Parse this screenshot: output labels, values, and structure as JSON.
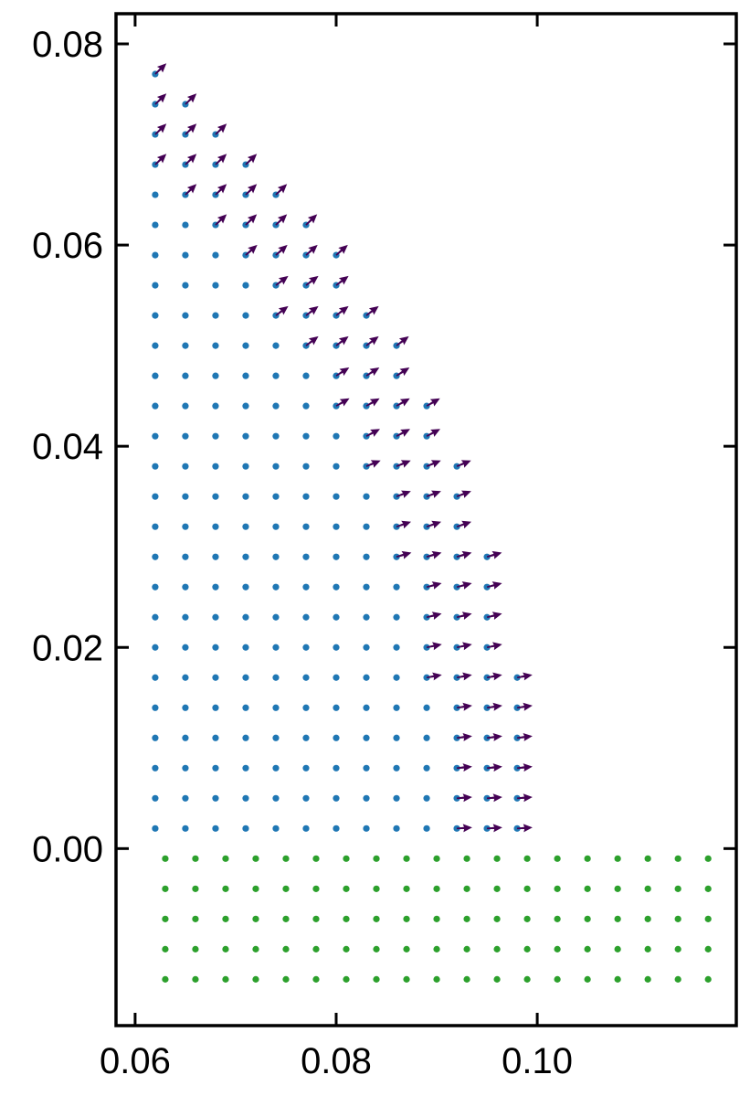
{
  "chart_data": {
    "type": "scatter",
    "xlim": [
      0.0581,
      0.1198
    ],
    "ylim": [
      -0.0176,
      0.083
    ],
    "xticks": [
      0.06,
      0.08,
      {
        "value": 0.1,
        "label": "0.10"
      }
    ],
    "yticks": [
      {
        "value": 0,
        "label": "0.00"
      },
      0.02,
      0.04,
      0.06,
      0.08
    ],
    "series": [
      {
        "color": "#1f77b4",
        "columns": [
          {
            "x": 0.062,
            "y": [
              0.002,
              0.005,
              0.008,
              0.011,
              0.014,
              0.017,
              0.02,
              0.023,
              0.026,
              0.029,
              0.032,
              0.035,
              0.038,
              0.041,
              0.044,
              0.047,
              0.05,
              0.053,
              0.056,
              0.059,
              0.062,
              0.065,
              0.068,
              0.071,
              0.074,
              0.077
            ]
          },
          {
            "x": 0.065,
            "y": [
              0.002,
              0.005,
              0.008,
              0.011,
              0.014,
              0.017,
              0.02,
              0.023,
              0.026,
              0.029,
              0.032,
              0.035,
              0.038,
              0.041,
              0.044,
              0.047,
              0.05,
              0.053,
              0.056,
              0.059,
              0.062,
              0.065,
              0.068,
              0.071,
              0.074
            ]
          },
          {
            "x": 0.068,
            "y": [
              0.002,
              0.005,
              0.008,
              0.011,
              0.014,
              0.017,
              0.02,
              0.023,
              0.026,
              0.029,
              0.032,
              0.035,
              0.038,
              0.041,
              0.044,
              0.047,
              0.05,
              0.053,
              0.056,
              0.059,
              0.062,
              0.065,
              0.068,
              0.071
            ]
          },
          {
            "x": 0.071,
            "y": [
              0.002,
              0.005,
              0.008,
              0.011,
              0.014,
              0.017,
              0.02,
              0.023,
              0.026,
              0.029,
              0.032,
              0.035,
              0.038,
              0.041,
              0.044,
              0.047,
              0.05,
              0.053,
              0.056,
              0.059,
              0.062,
              0.065,
              0.068
            ]
          },
          {
            "x": 0.074,
            "y": [
              0.002,
              0.005,
              0.008,
              0.011,
              0.014,
              0.017,
              0.02,
              0.023,
              0.026,
              0.029,
              0.032,
              0.035,
              0.038,
              0.041,
              0.044,
              0.047,
              0.05,
              0.053,
              0.056,
              0.059,
              0.062,
              0.065
            ]
          },
          {
            "x": 0.077,
            "y": [
              0.002,
              0.005,
              0.008,
              0.011,
              0.014,
              0.017,
              0.02,
              0.023,
              0.026,
              0.029,
              0.032,
              0.035,
              0.038,
              0.041,
              0.044,
              0.047,
              0.05,
              0.053,
              0.056,
              0.059,
              0.062
            ]
          },
          {
            "x": 0.08,
            "y": [
              0.002,
              0.005,
              0.008,
              0.011,
              0.014,
              0.017,
              0.02,
              0.023,
              0.026,
              0.029,
              0.032,
              0.035,
              0.038,
              0.041,
              0.044,
              0.047,
              0.05,
              0.053,
              0.056,
              0.059
            ]
          },
          {
            "x": 0.083,
            "y": [
              0.002,
              0.005,
              0.008,
              0.011,
              0.014,
              0.017,
              0.02,
              0.023,
              0.026,
              0.029,
              0.032,
              0.035,
              0.038,
              0.041,
              0.044,
              0.047,
              0.05,
              0.053
            ]
          },
          {
            "x": 0.086,
            "y": [
              0.002,
              0.005,
              0.008,
              0.011,
              0.014,
              0.017,
              0.02,
              0.023,
              0.026,
              0.029,
              0.032,
              0.035,
              0.038,
              0.041,
              0.044,
              0.047,
              0.05
            ]
          },
          {
            "x": 0.089,
            "y": [
              0.002,
              0.005,
              0.008,
              0.011,
              0.014,
              0.017,
              0.02,
              0.023,
              0.026,
              0.029,
              0.032,
              0.035,
              0.038,
              0.041,
              0.044
            ]
          },
          {
            "x": 0.092,
            "y": [
              0.002,
              0.005,
              0.008,
              0.011,
              0.014,
              0.017,
              0.02,
              0.023,
              0.026,
              0.029,
              0.032,
              0.035,
              0.038
            ]
          },
          {
            "x": 0.095,
            "y": [
              0.002,
              0.005,
              0.008,
              0.011,
              0.014,
              0.017,
              0.02,
              0.023,
              0.026,
              0.029
            ]
          },
          {
            "x": 0.098,
            "y": [
              0.002,
              0.005,
              0.008,
              0.011,
              0.014,
              0.017
            ]
          }
        ]
      },
      {
        "color": "#2ca02c",
        "columns": [
          {
            "x": 0.063,
            "y": [
              -0.001,
              -0.004,
              -0.007,
              -0.01,
              -0.013
            ]
          },
          {
            "x": 0.066,
            "y": [
              -0.001,
              -0.004,
              -0.007,
              -0.01,
              -0.013
            ]
          },
          {
            "x": 0.069,
            "y": [
              -0.001,
              -0.004,
              -0.007,
              -0.01,
              -0.013
            ]
          },
          {
            "x": 0.072,
            "y": [
              -0.001,
              -0.004,
              -0.007,
              -0.01,
              -0.013
            ]
          },
          {
            "x": 0.075,
            "y": [
              -0.001,
              -0.004,
              -0.007,
              -0.01,
              -0.013
            ]
          },
          {
            "x": 0.078,
            "y": [
              -0.001,
              -0.004,
              -0.007,
              -0.01,
              -0.013
            ]
          },
          {
            "x": 0.081,
            "y": [
              -0.001,
              -0.004,
              -0.007,
              -0.01,
              -0.013
            ]
          },
          {
            "x": 0.084,
            "y": [
              -0.001,
              -0.004,
              -0.007,
              -0.01,
              -0.013
            ]
          },
          {
            "x": 0.087,
            "y": [
              -0.001,
              -0.004,
              -0.007,
              -0.01,
              -0.013
            ]
          },
          {
            "x": 0.09,
            "y": [
              -0.001,
              -0.004,
              -0.007,
              -0.01,
              -0.013
            ]
          },
          {
            "x": 0.093,
            "y": [
              -0.001,
              -0.004,
              -0.007,
              -0.01,
              -0.013
            ]
          },
          {
            "x": 0.096,
            "y": [
              -0.001,
              -0.004,
              -0.007,
              -0.01,
              -0.013
            ]
          },
          {
            "x": 0.099,
            "y": [
              -0.001,
              -0.004,
              -0.007,
              -0.01,
              -0.013
            ]
          },
          {
            "x": 0.102,
            "y": [
              -0.001,
              -0.004,
              -0.007,
              -0.01,
              -0.013
            ]
          },
          {
            "x": 0.105,
            "y": [
              -0.001,
              -0.004,
              -0.007,
              -0.01,
              -0.013
            ]
          },
          {
            "x": 0.108,
            "y": [
              -0.001,
              -0.004,
              -0.007,
              -0.01,
              -0.013
            ]
          },
          {
            "x": 0.111,
            "y": [
              -0.001,
              -0.004,
              -0.007,
              -0.01,
              -0.013
            ]
          },
          {
            "x": 0.114,
            "y": [
              -0.001,
              -0.004,
              -0.007,
              -0.01,
              -0.013
            ]
          },
          {
            "x": 0.117,
            "y": [
              -0.001,
              -0.004,
              -0.007,
              -0.01,
              -0.013
            ]
          }
        ]
      }
    ],
    "arrow_color": "#440154",
    "arrows": [
      {
        "y": 0.077,
        "x": [
          0.062
        ],
        "u": 0.72,
        "v": 0.69
      },
      {
        "y": 0.074,
        "x": [
          0.062,
          0.065
        ],
        "u": 0.72,
        "v": 0.69
      },
      {
        "y": 0.071,
        "x": [
          0.062,
          0.065,
          0.068
        ],
        "u": 0.72,
        "v": 0.69
      },
      {
        "y": 0.068,
        "x": [
          0.062,
          0.065,
          0.068,
          0.071
        ],
        "u": 0.72,
        "v": 0.69
      },
      {
        "y": 0.065,
        "x": [
          0.065,
          0.068,
          0.071,
          0.074
        ],
        "u": 0.72,
        "v": 0.69
      },
      {
        "y": 0.062,
        "x": [
          0.068,
          0.071,
          0.074,
          0.077
        ],
        "u": 0.72,
        "v": 0.69
      },
      {
        "y": 0.059,
        "x": [
          0.071,
          0.074,
          0.077,
          0.08
        ],
        "u": 0.75,
        "v": 0.66
      },
      {
        "y": 0.056,
        "x": [
          0.074,
          0.077,
          0.08
        ],
        "u": 0.8,
        "v": 0.6
      },
      {
        "y": 0.053,
        "x": [
          0.074,
          0.077,
          0.08,
          0.083
        ],
        "u": 0.8,
        "v": 0.6
      },
      {
        "y": 0.05,
        "x": [
          0.077,
          0.08,
          0.083,
          0.086
        ],
        "u": 0.8,
        "v": 0.6
      },
      {
        "y": 0.047,
        "x": [
          0.08,
          0.083,
          0.086
        ],
        "u": 0.84,
        "v": 0.54
      },
      {
        "y": 0.044,
        "x": [
          0.08,
          0.083,
          0.086,
          0.089
        ],
        "u": 0.86,
        "v": 0.5
      },
      {
        "y": 0.041,
        "x": [
          0.083,
          0.086,
          0.089
        ],
        "u": 0.88,
        "v": 0.46
      },
      {
        "y": 0.038,
        "x": [
          0.083,
          0.086,
          0.089,
          0.092
        ],
        "u": 0.92,
        "v": 0.38
      },
      {
        "y": 0.035,
        "x": [
          0.086,
          0.089,
          0.092
        ],
        "u": 0.93,
        "v": 0.35
      },
      {
        "y": 0.032,
        "x": [
          0.086,
          0.089,
          0.092
        ],
        "u": 0.94,
        "v": 0.32
      },
      {
        "y": 0.029,
        "x": [
          0.086,
          0.089,
          0.092,
          0.095
        ],
        "u": 0.96,
        "v": 0.28
      },
      {
        "y": 0.026,
        "x": [
          0.089,
          0.092,
          0.095
        ],
        "u": 0.97,
        "v": 0.25
      },
      {
        "y": 0.023,
        "x": [
          0.089,
          0.092,
          0.095
        ],
        "u": 0.97,
        "v": 0.23
      },
      {
        "y": 0.02,
        "x": [
          0.089,
          0.092,
          0.095
        ],
        "u": 0.98,
        "v": 0.2
      },
      {
        "y": 0.017,
        "x": [
          0.089,
          0.092,
          0.095,
          0.098
        ],
        "u": 0.98,
        "v": 0.18
      },
      {
        "y": 0.014,
        "x": [
          0.092,
          0.095,
          0.098
        ],
        "u": 0.99,
        "v": 0.14
      },
      {
        "y": 0.011,
        "x": [
          0.092,
          0.095,
          0.098
        ],
        "u": 0.99,
        "v": 0.12
      },
      {
        "y": 0.008,
        "x": [
          0.092,
          0.095,
          0.098
        ],
        "u": 0.99,
        "v": 0.1
      },
      {
        "y": 0.005,
        "x": [
          0.092,
          0.095,
          0.098
        ],
        "u": 0.99,
        "v": 0.08
      },
      {
        "y": 0.002,
        "x": [
          0.092,
          0.095,
          0.098
        ],
        "u": 0.99,
        "v": 0.06
      }
    ]
  }
}
